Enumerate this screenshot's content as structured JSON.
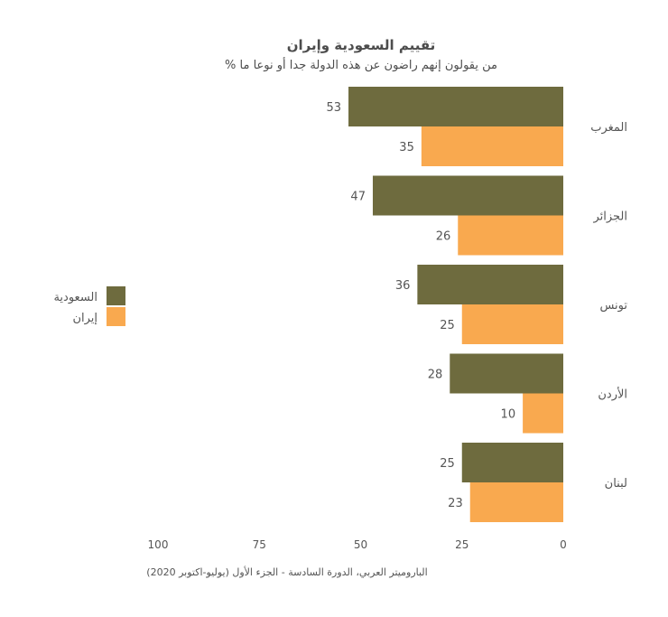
{
  "chart_data": {
    "type": "bar",
    "orientation": "horizontal",
    "title": "تقييم السعودية وإيران",
    "subtitle": "% من يقولون إنهم راضون عن هذه الدولة جدا أو نوعا ما",
    "categories": [
      "المغرب",
      "الجزائر",
      "تونس",
      "الأردن",
      "لبنان"
    ],
    "series": [
      {
        "name": "السعودية",
        "color": "#6e6b3e",
        "values": [
          53,
          47,
          36,
          28,
          25
        ]
      },
      {
        "name": "إيران",
        "color": "#f9a94f",
        "values": [
          35,
          26,
          25,
          10,
          23
        ]
      }
    ],
    "xlim": [
      0,
      100
    ],
    "x_reversed": true,
    "xticks": [
      100,
      75,
      50,
      25,
      0
    ],
    "grid": false,
    "legend": {
      "position": "left",
      "entries": [
        "السعودية",
        "إيران"
      ]
    },
    "source": "الباروميتر العربي، الدورة السادسة - الجزء الأول (يوليو-اكتوبر 2020)"
  }
}
